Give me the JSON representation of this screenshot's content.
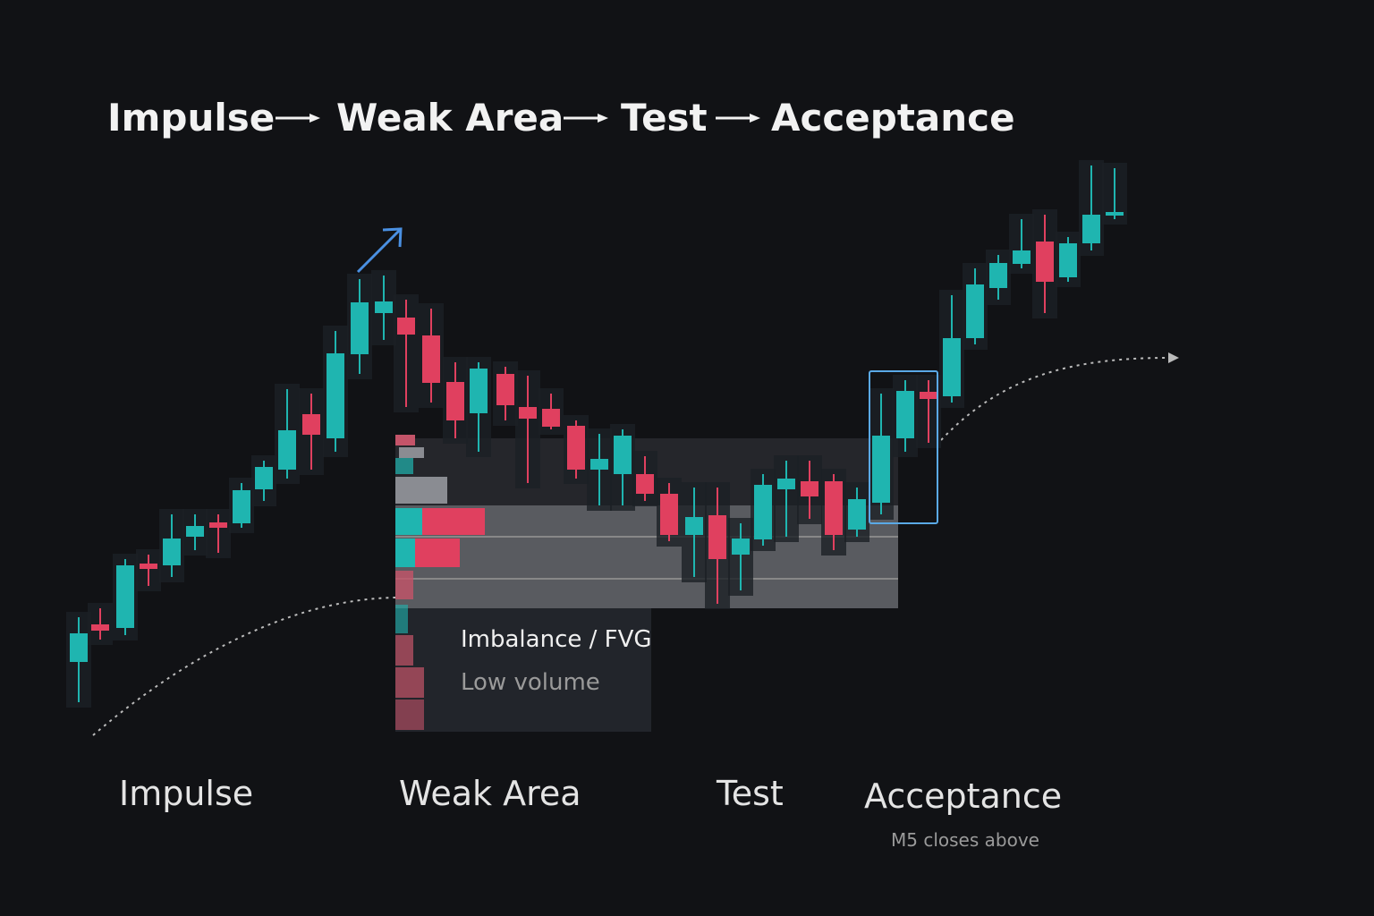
{
  "header": {
    "title_parts": [
      "Impulse",
      "Weak Area",
      "Test",
      "Acceptance"
    ]
  },
  "callout": {
    "title": "Imbalance / FVG",
    "subtitle": "Low volume"
  },
  "phases": [
    {
      "label": "Impulse"
    },
    {
      "label": "Weak Area"
    },
    {
      "label": "Test"
    },
    {
      "label": "Acceptance",
      "note": "M5 closes above"
    }
  ]
}
